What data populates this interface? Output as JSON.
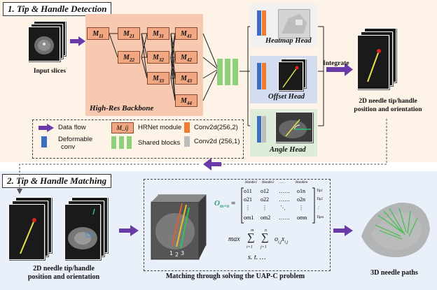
{
  "sections": {
    "top_title": "1. Tip & Handle Detection",
    "bottom_title": "2. Tip & Handle Matching"
  },
  "top": {
    "input_label": "Input slices",
    "backbone_label": "High-Res Backbone",
    "modules": [
      "M11",
      "M21",
      "M22",
      "M31",
      "M32",
      "M33",
      "M41",
      "M42",
      "M43",
      "M44"
    ],
    "heads": {
      "heatmap": "Heatmap Head",
      "offset": "Offset Head",
      "angle": "Angle Head"
    },
    "integrate_label": "Integrate",
    "output_label_line1": "2D needle tip/handle",
    "output_label_line2": "position and orientation"
  },
  "legend": {
    "data_flow": "Data flow",
    "hrnet_symbol": "M_ij",
    "hrnet_module": "HRNet module",
    "conv_a": "Conv2d(256,2)",
    "deformable_line1": "Deformable",
    "deformable_line2": "conv",
    "shared_blocks": "Shared blocks",
    "conv_b": "Conv2d (256,1)"
  },
  "bottom": {
    "input_label_line1": "2D needle tip/handle",
    "input_label_line2": "position and orientation",
    "matching_label": "Matching through solving the UAP-C problem",
    "output_label": "3D needle paths",
    "matrix_name": "O",
    "matrix_sub": "m×n",
    "matrix_rows": [
      [
        "o11",
        "o12",
        "……",
        "o1n"
      ],
      [
        "o21",
        "o22",
        "……",
        "o2n"
      ],
      [
        "⋮",
        "⋮",
        "⋱",
        "⋮"
      ],
      [
        "om1",
        "om2",
        "……",
        "omn"
      ]
    ],
    "handle_headers": [
      "Handle1",
      "Handle2",
      "……",
      "Handlen"
    ],
    "tip_labels": [
      "Tip1",
      "Tip2",
      "⋮",
      "Tipm"
    ],
    "objective": "max ∑ ∑ o_i,j x_i,j",
    "sum_upper": [
      "m",
      "n"
    ],
    "sum_lower": [
      "i=1",
      "j=1"
    ],
    "st": "s. t. …",
    "needle_numbers": [
      "1",
      "2",
      "3"
    ]
  },
  "colors": {
    "top_panel": "#fdf3e6",
    "bottom_panel": "#eaf0f9",
    "backbone": "#f6c9b0",
    "module": "#f1a882",
    "shared_block": "#8fd07a",
    "deformable": "#3a6fc4",
    "conv_orange": "#ee7d31",
    "conv_gray": "#bdbdbd",
    "arrow": "#6a3aa8",
    "matrix_green": "#2aa37a"
  }
}
